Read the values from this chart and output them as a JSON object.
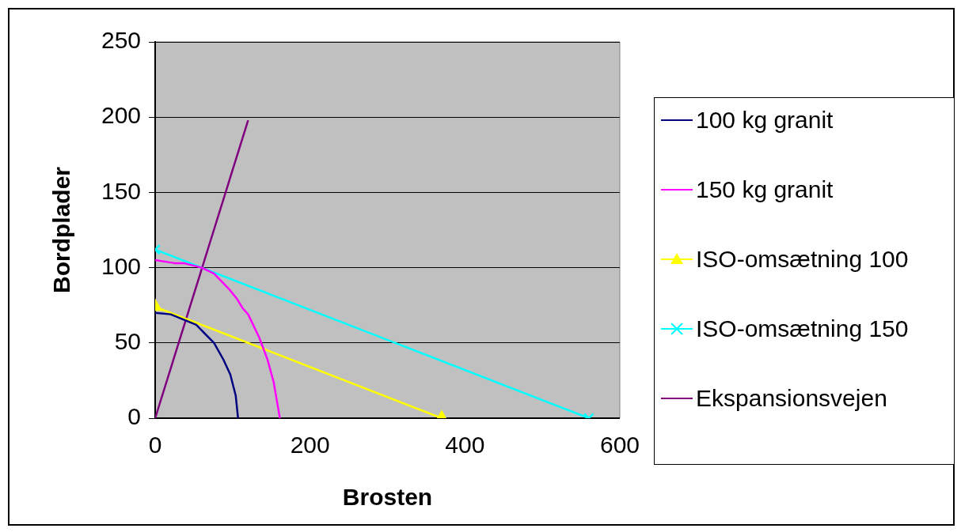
{
  "chart_data": {
    "type": "line",
    "xlabel": "Brosten",
    "ylabel": "Bordplader",
    "xlim": [
      0,
      600
    ],
    "xticks": [
      0,
      200,
      400,
      600
    ],
    "ylim": [
      0,
      250
    ],
    "yticks": [
      0,
      50,
      100,
      150,
      200,
      250
    ],
    "grid": "y",
    "legend": "right",
    "series": [
      {
        "name": "100 kg granit",
        "color": "#000080",
        "marker": "none",
        "x": [
          0,
          20,
          53,
          76,
          88,
          97,
          104,
          107
        ],
        "values": [
          70,
          69,
          62,
          50,
          39,
          29,
          15,
          0
        ]
      },
      {
        "name": "150 kg granit",
        "color": "#ff00ff",
        "marker": "none",
        "x": [
          0,
          25,
          37,
          60,
          76,
          95,
          106,
          113,
          120,
          134,
          145,
          153,
          161
        ],
        "values": [
          105,
          103,
          103,
          100,
          96,
          86,
          79,
          73,
          69,
          54,
          39,
          24,
          0
        ]
      },
      {
        "name": "ISO-omsætning 100",
        "color": "#ffff00",
        "marker": "triangle",
        "x": [
          0,
          370
        ],
        "values": [
          74,
          0
        ]
      },
      {
        "name": "ISO-omsætning 150",
        "color": "#00ffff",
        "marker": "cross",
        "x": [
          0,
          560
        ],
        "values": [
          112,
          0
        ]
      },
      {
        "name": "Ekspansionsvejen",
        "color": "#800080",
        "marker": "none",
        "x": [
          0,
          120
        ],
        "values": [
          0,
          198
        ]
      }
    ]
  }
}
